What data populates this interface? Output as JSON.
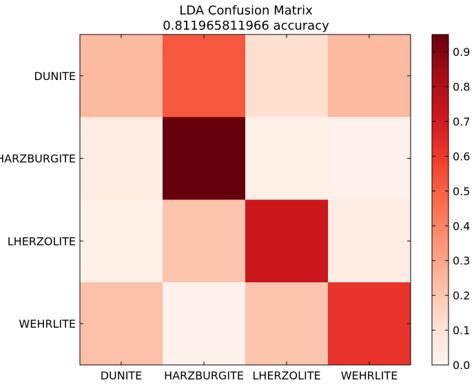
{
  "chart_data": {
    "type": "heatmap",
    "title": "LDA Confusion Matrix",
    "subtitle": "0.811965811966 accuracy",
    "row_labels": [
      "DUNITE",
      "HARZBURGITE",
      "LHERZOLITE",
      "WEHRLITE"
    ],
    "col_labels": [
      "DUNITE",
      "HARZBURGITE",
      "LHERZOLITE",
      "WEHRLITE"
    ],
    "values": [
      [
        0.24,
        0.52,
        0.12,
        0.24
      ],
      [
        0.05,
        0.95,
        0.03,
        0.02
      ],
      [
        0.03,
        0.21,
        0.72,
        0.05
      ],
      [
        0.22,
        0.02,
        0.21,
        0.62
      ]
    ],
    "colormap": "Reds",
    "colorbar": {
      "range": [
        0.0,
        0.95
      ],
      "ticks": [
        0.0,
        0.1,
        0.2,
        0.3,
        0.4,
        0.5,
        0.6,
        0.7,
        0.8,
        0.9
      ],
      "tick_labels": [
        "0.0",
        "0.1",
        "0.2",
        "0.3",
        "0.4",
        "0.5",
        "0.6",
        "0.7",
        "0.8",
        "0.9"
      ]
    },
    "colormap_stops": [
      "#fff5f0",
      "#fee0d2",
      "#fcbba1",
      "#fc9272",
      "#fb6a4a",
      "#ef3b2c",
      "#cb181d",
      "#a50f15",
      "#67000d"
    ]
  }
}
